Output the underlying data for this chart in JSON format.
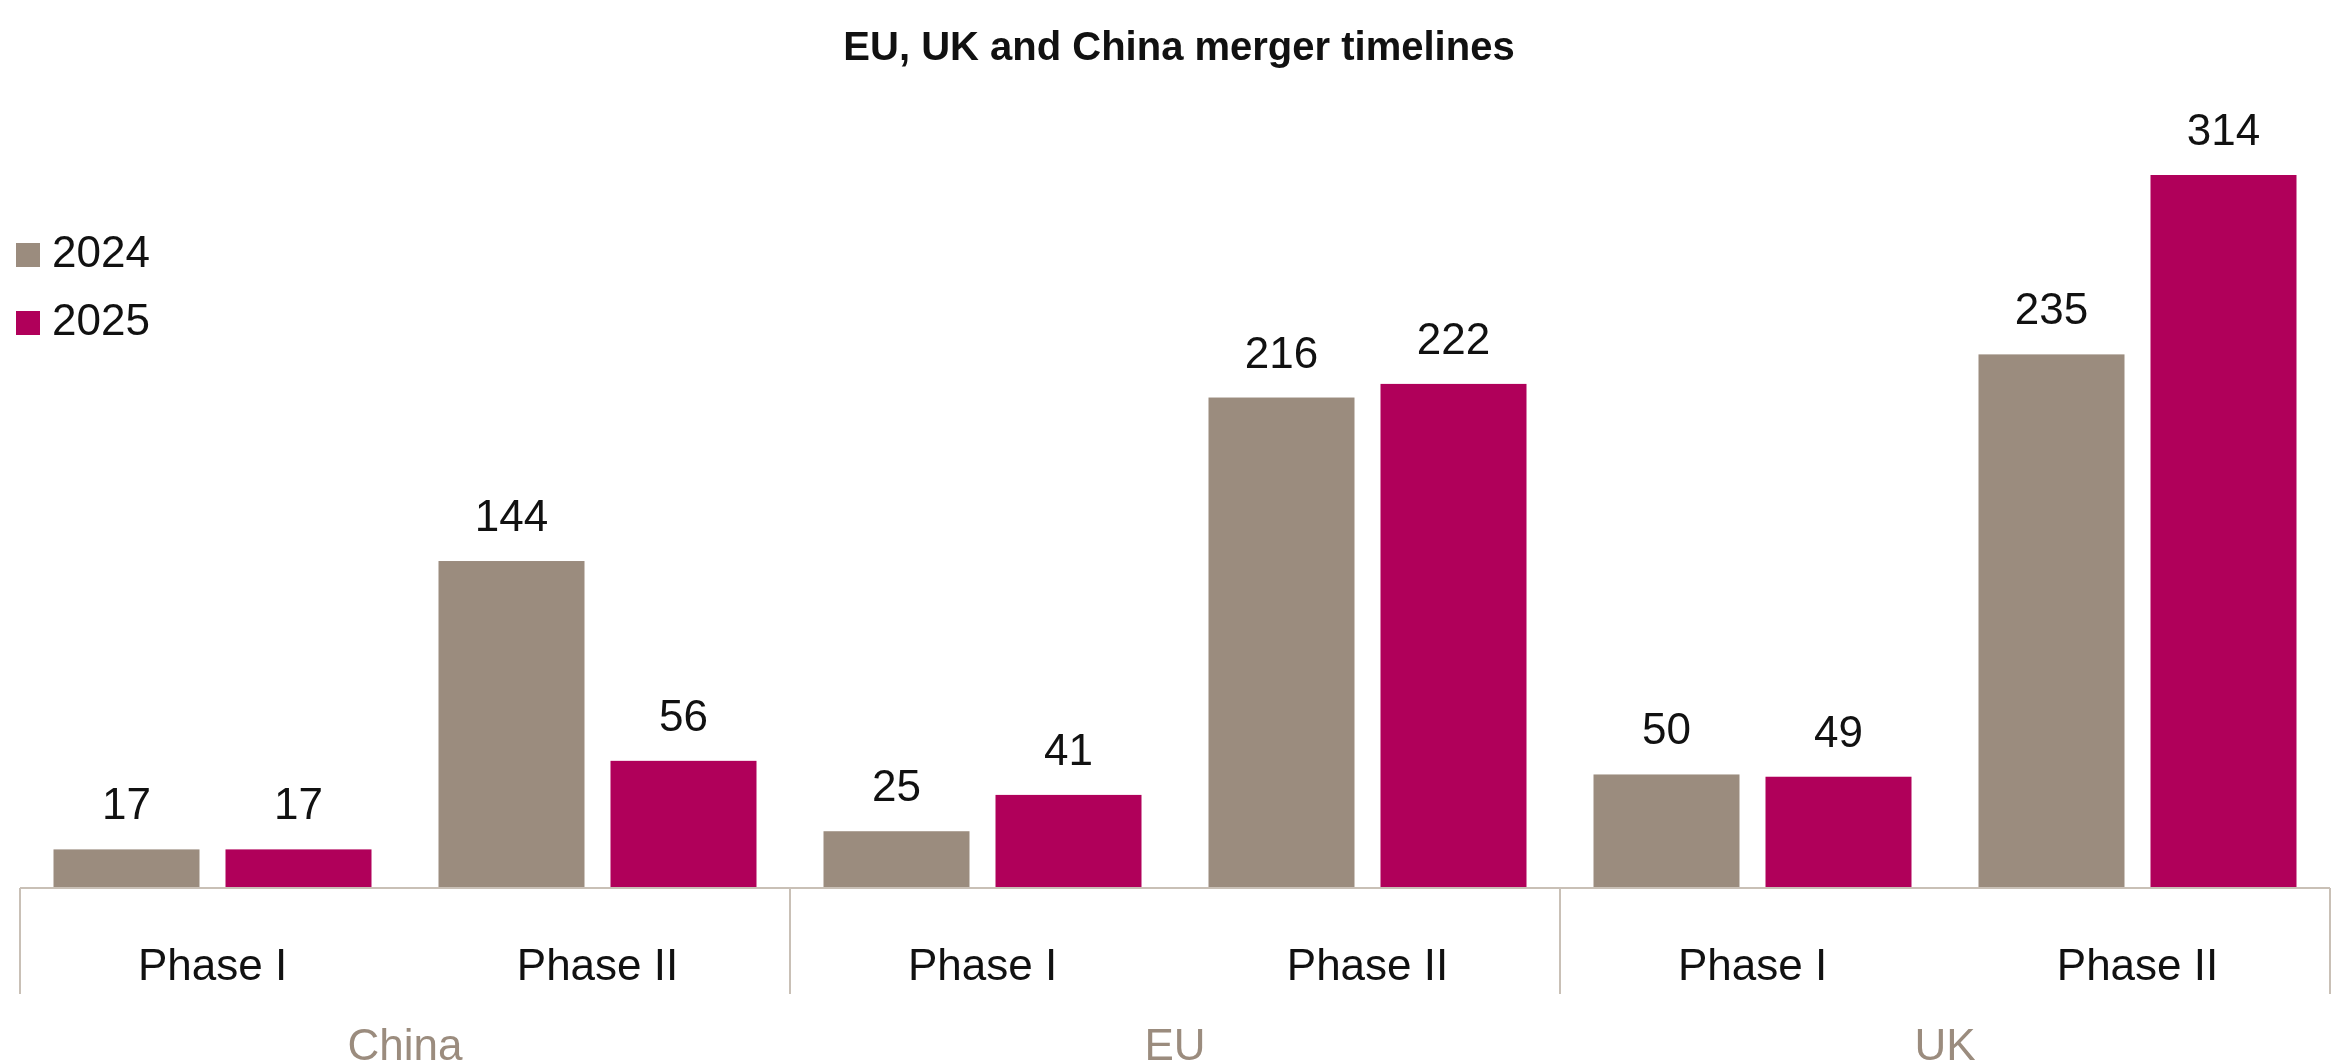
{
  "chart_data": {
    "type": "bar",
    "title": "EU, UK and China merger timelines",
    "categories": [
      "Phase I",
      "Phase II",
      "Phase I",
      "Phase II",
      "Phase I",
      "Phase II"
    ],
    "series": [
      {
        "name": "2024",
        "color": "#9b8c7e",
        "values": [
          17,
          144,
          25,
          216,
          50,
          235
        ]
      },
      {
        "name": "2025",
        "color": "#b0005a",
        "values": [
          17,
          56,
          41,
          222,
          49,
          314
        ]
      }
    ],
    "annotations": [
      "China",
      "EU",
      "UK"
    ],
    "data_labels": true,
    "legend": "top left"
  }
}
